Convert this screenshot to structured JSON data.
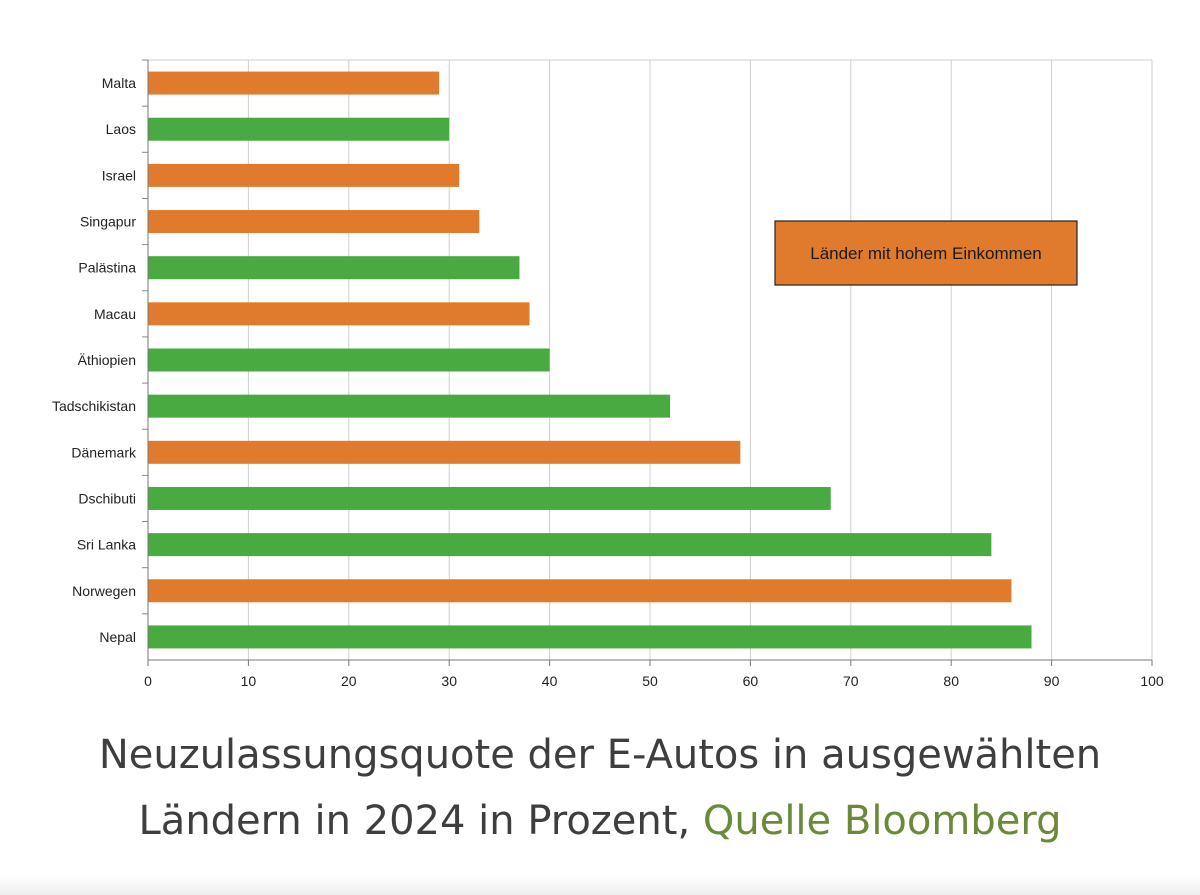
{
  "chart_data": {
    "type": "bar",
    "orientation": "horizontal",
    "categories": [
      "Malta",
      "Laos",
      "Israel",
      "Singapur",
      "Palästina",
      "Macau",
      "Äthiopien",
      "Tadschikistan",
      "Dänemark",
      "Dschibuti",
      "Sri Lanka",
      "Norwegen",
      "Nepal"
    ],
    "values": [
      29,
      30,
      31,
      33,
      37,
      38,
      40,
      52,
      59,
      68,
      84,
      86,
      88
    ],
    "high_income": [
      true,
      false,
      true,
      true,
      false,
      true,
      false,
      false,
      true,
      false,
      false,
      true,
      false
    ],
    "xlim": [
      0,
      100
    ],
    "xticks": [
      0,
      10,
      20,
      30,
      40,
      50,
      60,
      70,
      80,
      90,
      100
    ],
    "grid": true,
    "legend": {
      "label": "Länder mit hohem Einkommen",
      "placement": "upper-right"
    },
    "colors": {
      "high_income": "#E07B2E",
      "other": "#4AAA42"
    }
  },
  "caption": {
    "line1": "Neuzulassungsquote der E-Autos in ausgewählten",
    "line2": "Ländern in 2024 in Prozent,",
    "source": "Quelle Bloomberg"
  }
}
